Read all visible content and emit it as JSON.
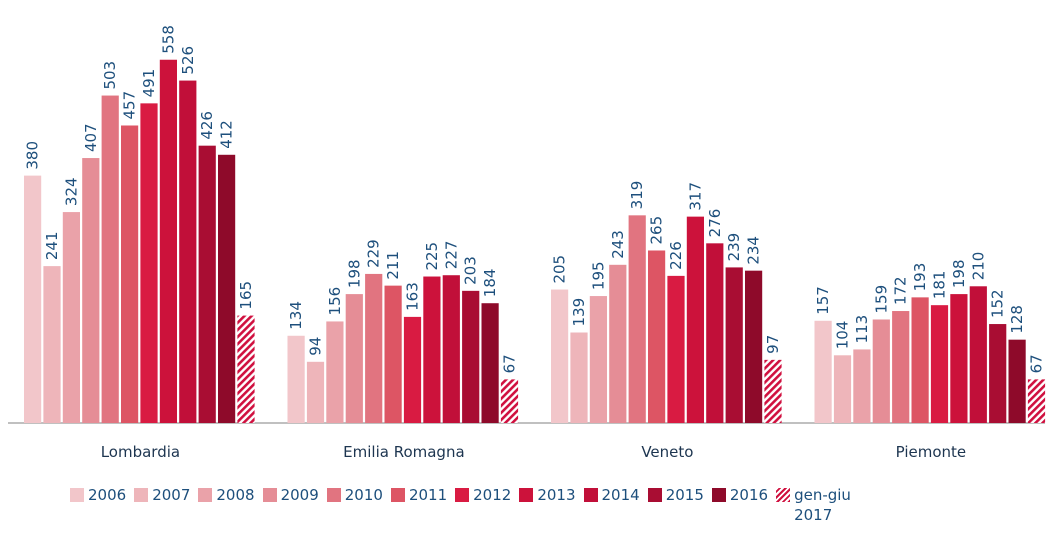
{
  "chart_data": {
    "type": "bar",
    "categories": [
      "Lombardia",
      "Emilia Romagna",
      "Veneto",
      "Piemonte"
    ],
    "series": [
      {
        "name": "2006",
        "color": "#f2c6ca",
        "values": [
          380,
          134,
          205,
          157
        ]
      },
      {
        "name": "2007",
        "color": "#eeb5ba",
        "values": [
          241,
          94,
          139,
          104
        ]
      },
      {
        "name": "2008",
        "color": "#eaa2a9",
        "values": [
          324,
          156,
          195,
          113
        ]
      },
      {
        "name": "2009",
        "color": "#e58d96",
        "values": [
          407,
          198,
          243,
          159
        ]
      },
      {
        "name": "2010",
        "color": "#e17480",
        "values": [
          503,
          229,
          319,
          172
        ]
      },
      {
        "name": "2011",
        "color": "#dd5564",
        "values": [
          457,
          211,
          265,
          193
        ]
      },
      {
        "name": "2012",
        "color": "#d91b42",
        "values": [
          491,
          163,
          226,
          181
        ]
      },
      {
        "name": "2013",
        "color": "#cc123b",
        "values": [
          558,
          225,
          317,
          198
        ]
      },
      {
        "name": "2014",
        "color": "#c10f39",
        "values": [
          526,
          227,
          276,
          210
        ]
      },
      {
        "name": "2015",
        "color": "#a90d33",
        "values": [
          426,
          203,
          239,
          152
        ]
      },
      {
        "name": "2016",
        "color": "#8e0a2a",
        "values": [
          412,
          184,
          234,
          128
        ]
      },
      {
        "name": "gen-giu 2017",
        "color": "#d0103f",
        "hatch": true,
        "values": [
          165,
          67,
          97,
          67
        ]
      }
    ]
  }
}
